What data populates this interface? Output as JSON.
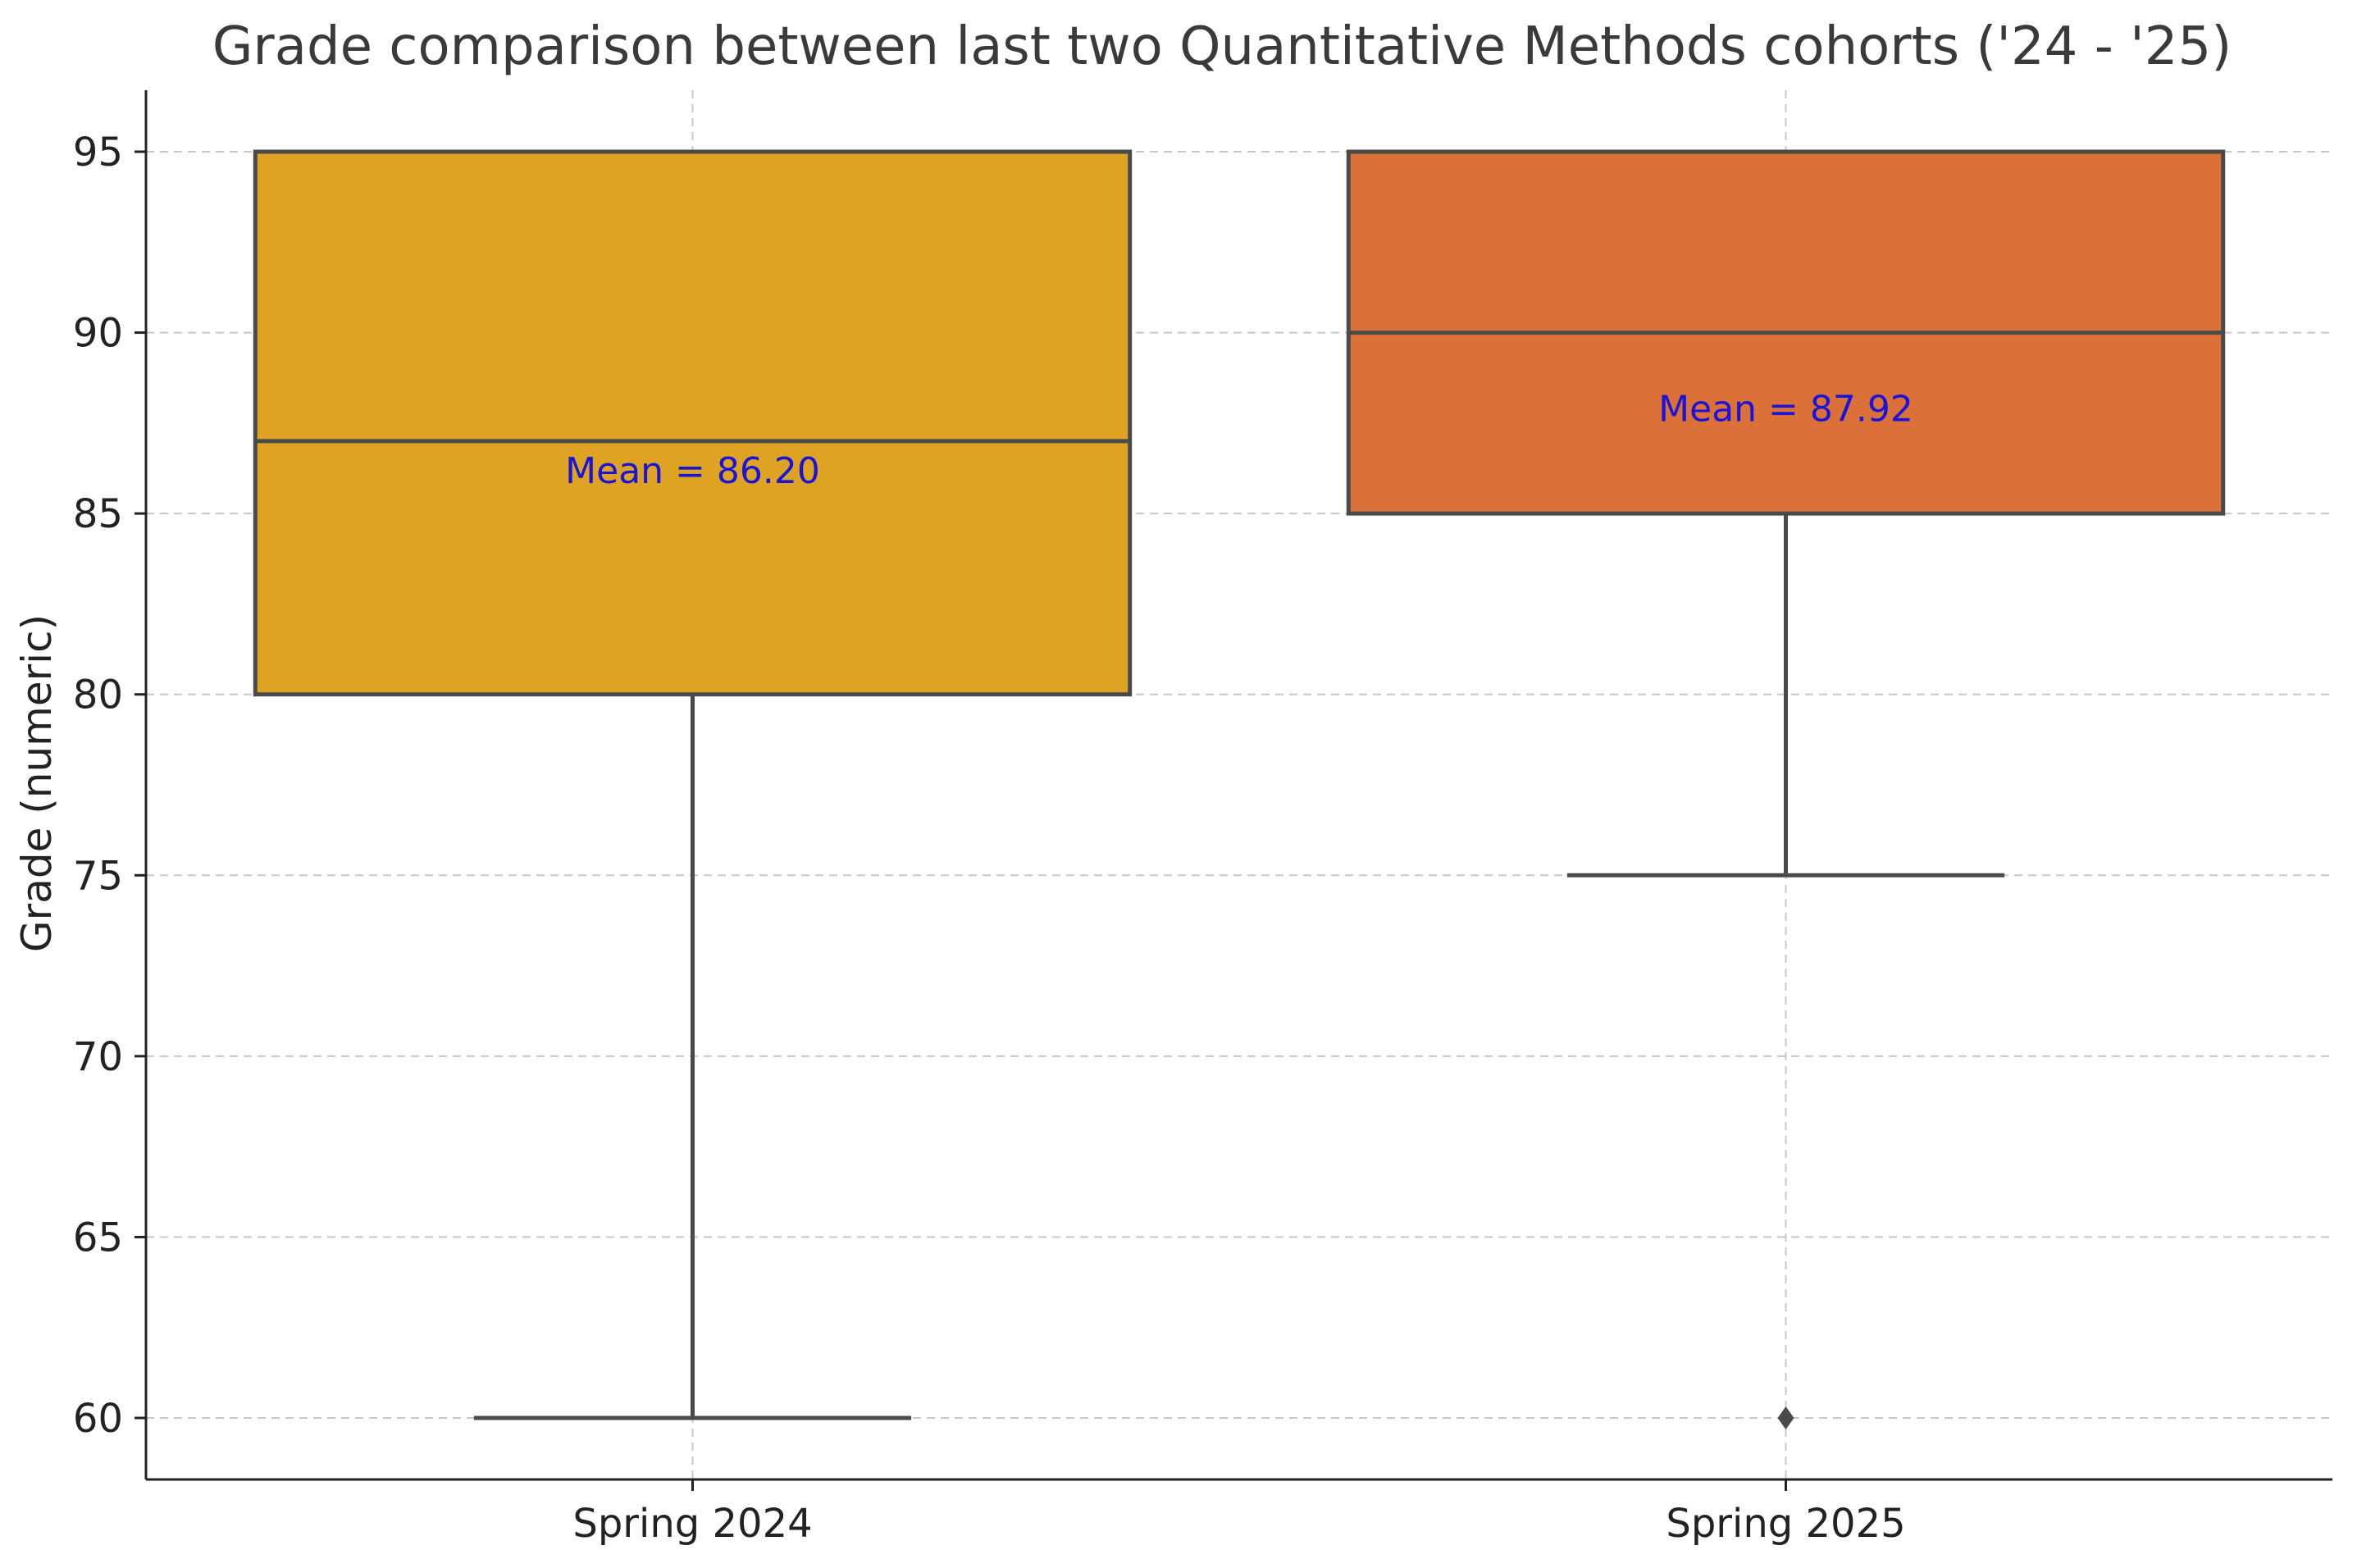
{
  "chart_data": {
    "type": "box",
    "title": "Grade comparison between last two Quantitative Methods cohorts ('24 - '25)",
    "xlabel": "",
    "ylabel": "Grade (numeric)",
    "ylim": [
      58.3,
      96.7
    ],
    "yticks": [
      60,
      65,
      70,
      75,
      80,
      85,
      90,
      95
    ],
    "grid": true,
    "categories": [
      "Spring 2024",
      "Spring 2025"
    ],
    "boxes": [
      {
        "category": "Spring 2024",
        "whisker_low": 60,
        "q1": 80,
        "median": 87,
        "q3": 95,
        "whisker_high": 95,
        "outliers": [],
        "mean": 86.2,
        "mean_label": "Mean = 86.20",
        "color": "#dfa324"
      },
      {
        "category": "Spring 2025",
        "whisker_low": 75,
        "q1": 85,
        "median": 90,
        "q3": 95,
        "whisker_high": 95,
        "outliers": [
          60
        ],
        "mean": 87.92,
        "mean_label": "Mean = 87.92",
        "color": "#dc7039"
      }
    ],
    "colors": {
      "line": "#4a4a4a",
      "grid": "#c8c8c8",
      "axis": "#222222",
      "mean_text": "#1a14d9"
    }
  }
}
